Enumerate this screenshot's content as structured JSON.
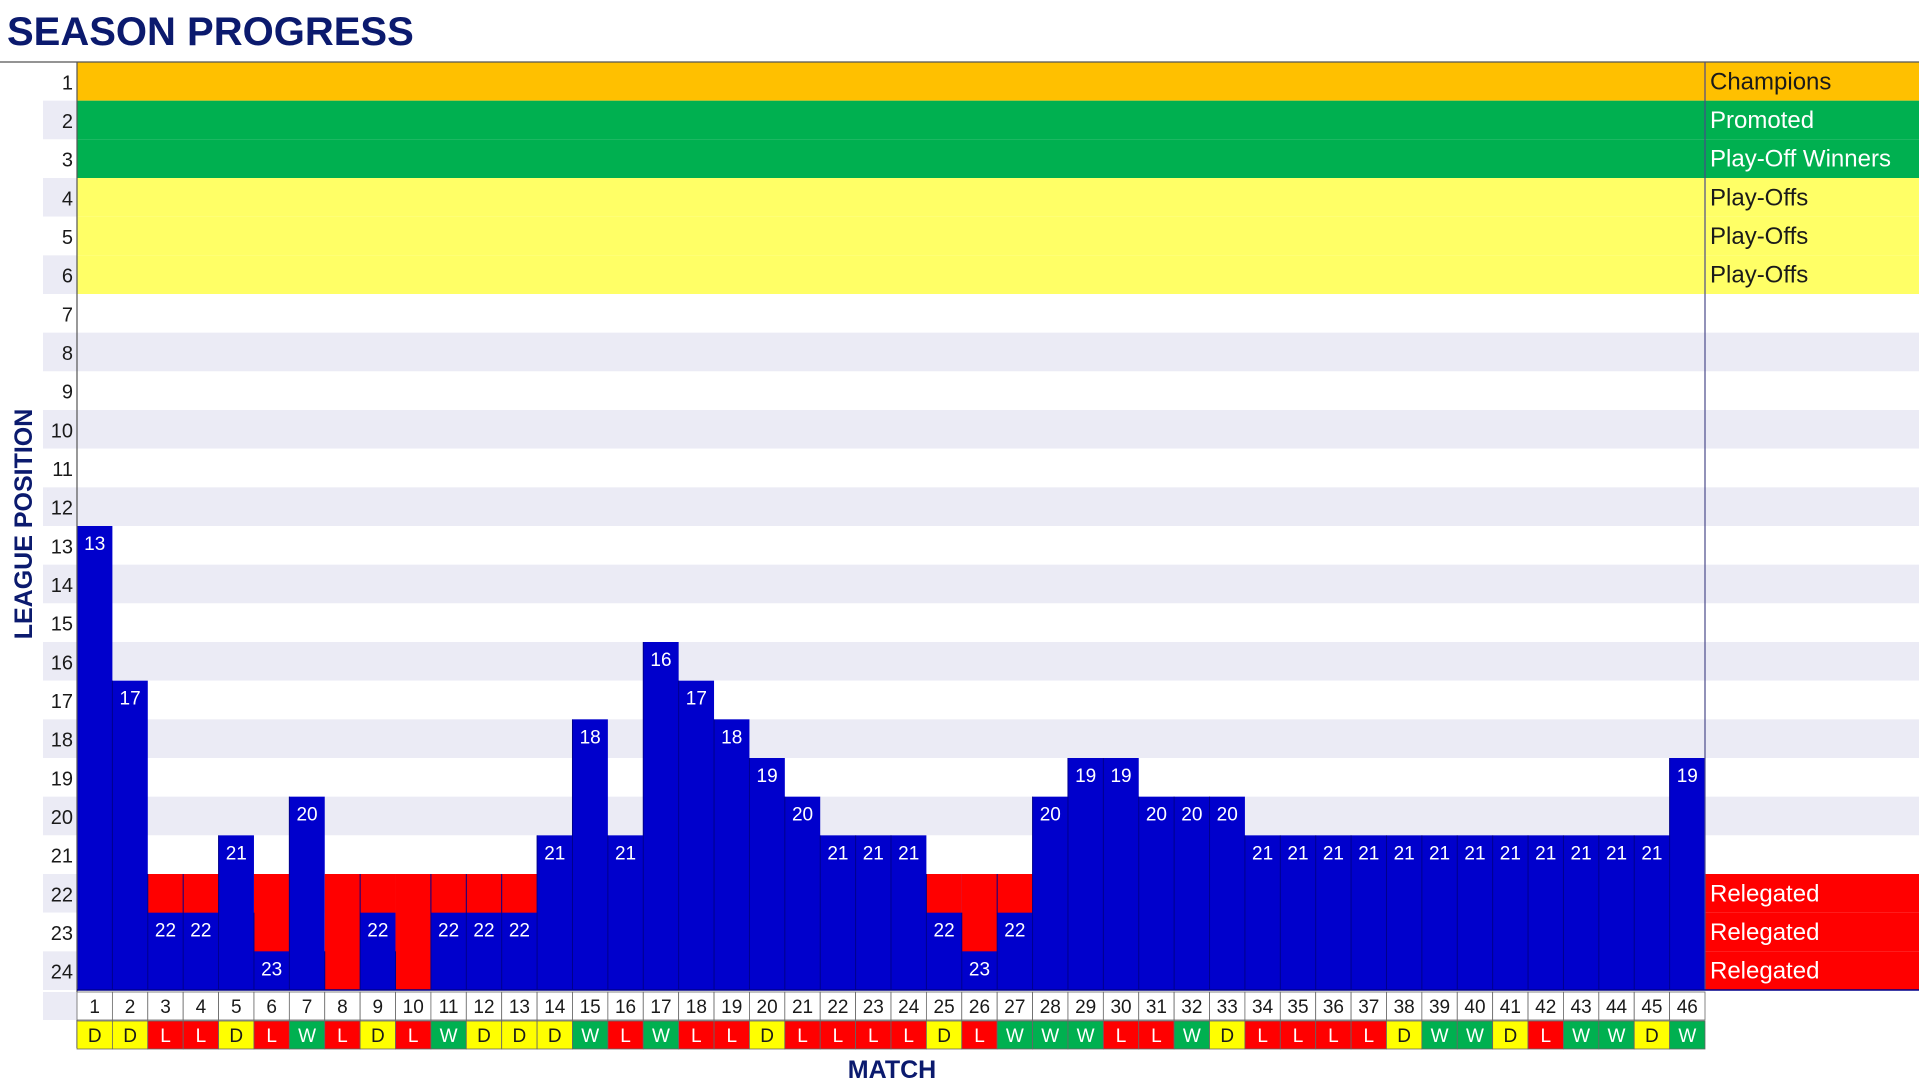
{
  "chart_data": {
    "type": "bar",
    "title": "SEASON PROGRESS",
    "xlabel": "MATCH",
    "ylabel": "LEAGUE POSITION",
    "y_range": [
      1,
      24
    ],
    "y_inverted": true,
    "matches": [
      1,
      2,
      3,
      4,
      5,
      6,
      7,
      8,
      9,
      10,
      11,
      12,
      13,
      14,
      15,
      16,
      17,
      18,
      19,
      20,
      21,
      22,
      23,
      24,
      25,
      26,
      27,
      28,
      29,
      30,
      31,
      32,
      33,
      34,
      35,
      36,
      37,
      38,
      39,
      40,
      41,
      42,
      43,
      44,
      45,
      46
    ],
    "positions": [
      13,
      17,
      22,
      22,
      21,
      23,
      20,
      24,
      22,
      24,
      22,
      22,
      22,
      21,
      18,
      21,
      16,
      17,
      18,
      19,
      20,
      21,
      21,
      21,
      22,
      23,
      22,
      20,
      19,
      19,
      20,
      20,
      20,
      21,
      21,
      21,
      21,
      21,
      21,
      21,
      21,
      21,
      21,
      21,
      21,
      19
    ],
    "results": [
      "D",
      "D",
      "L",
      "L",
      "D",
      "L",
      "W",
      "L",
      "D",
      "L",
      "W",
      "D",
      "D",
      "D",
      "W",
      "L",
      "W",
      "L",
      "L",
      "D",
      "L",
      "L",
      "L",
      "L",
      "D",
      "L",
      "W",
      "W",
      "W",
      "L",
      "L",
      "W",
      "D",
      "L",
      "L",
      "L",
      "L",
      "D",
      "W",
      "W",
      "D",
      "L",
      "W",
      "W",
      "D",
      "W"
    ],
    "zones": [
      {
        "position": 1,
        "label": "Champions",
        "color": "#FFC000",
        "text_color": "#1a1a1a"
      },
      {
        "position": 2,
        "label": "Promoted",
        "color": "#00B050",
        "text_color": "#ffffff"
      },
      {
        "position": 3,
        "label": "Play-Off Winners",
        "color": "#00B050",
        "text_color": "#ffffff"
      },
      {
        "position": 4,
        "label": "Play-Offs",
        "color": "#FFFF66",
        "text_color": "#1a1a1a"
      },
      {
        "position": 5,
        "label": "Play-Offs",
        "color": "#FFFF66",
        "text_color": "#1a1a1a"
      },
      {
        "position": 6,
        "label": "Play-Offs",
        "color": "#FFFF66",
        "text_color": "#1a1a1a"
      },
      {
        "position": 22,
        "label": "Relegated",
        "color": "#FF0000",
        "text_color": "#ffffff"
      },
      {
        "position": 23,
        "label": "Relegated",
        "color": "#FF0000",
        "text_color": "#ffffff"
      },
      {
        "position": 24,
        "label": "Relegated",
        "color": "#FF0000",
        "text_color": "#ffffff"
      }
    ],
    "colors": {
      "bar": "#0000CC",
      "bar_relegation": "#FF0000",
      "win": "#00B050",
      "draw": "#FFFF00",
      "loss": "#FF0000",
      "stripe": "#EBEBF5",
      "title": "#0B1A6E"
    },
    "grid": true,
    "legend": "right"
  }
}
